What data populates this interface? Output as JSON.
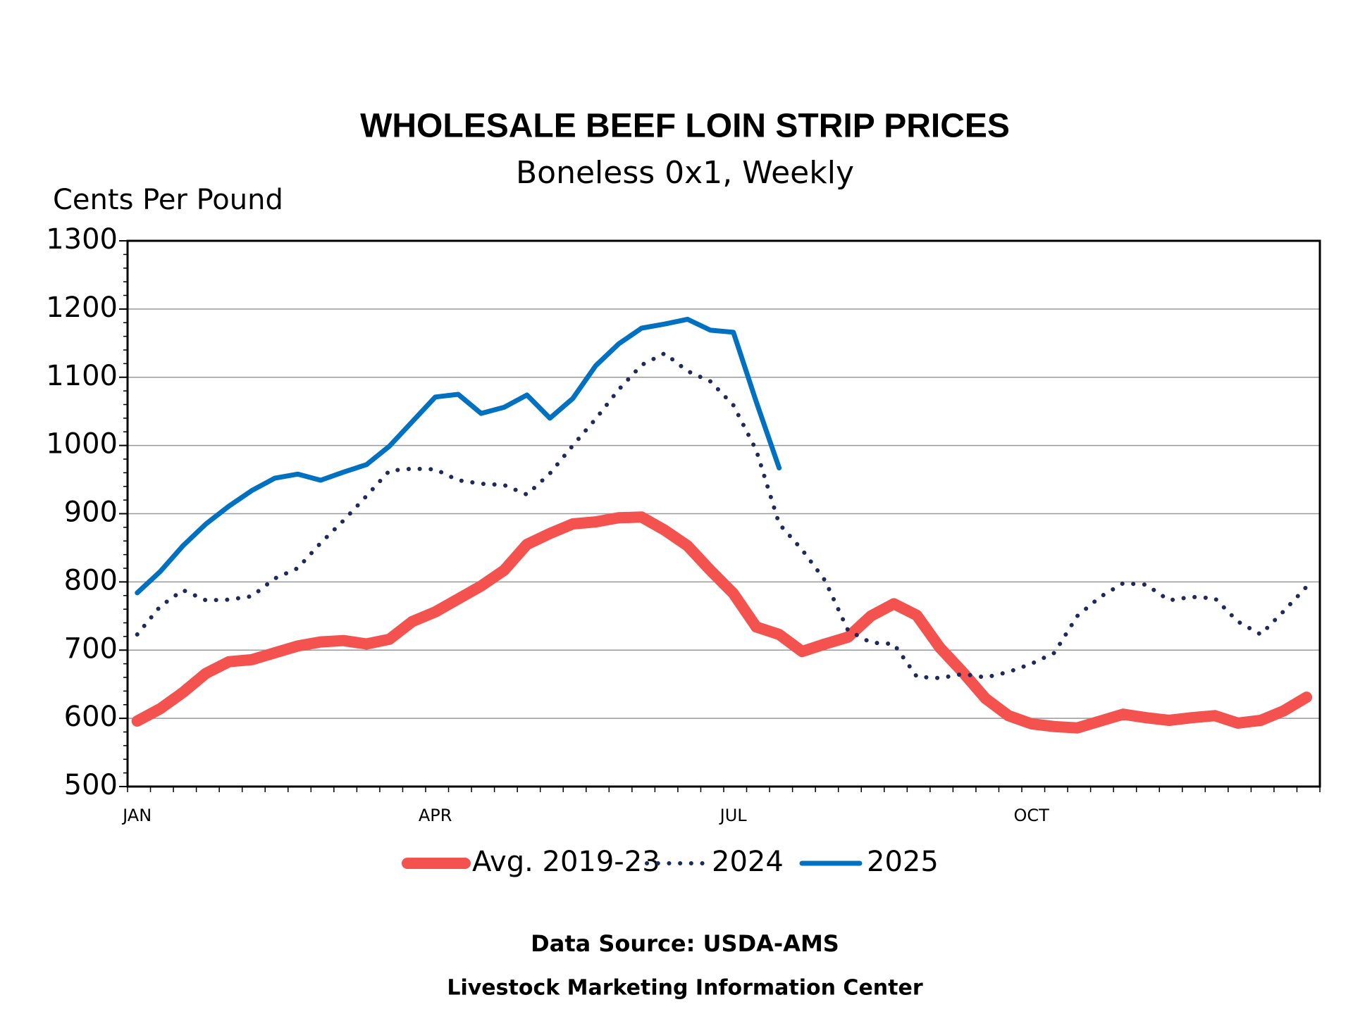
{
  "chart_data": {
    "type": "line",
    "title": "WHOLESALE BEEF LOIN STRIP PRICES",
    "subtitle": "Boneless 0x1, Weekly",
    "y_label": "Cents Per Pound",
    "source": "Data Source:  USDA-AMS",
    "credit": "Livestock Marketing Information Center",
    "categories": [
      "JAN",
      null,
      null,
      null,
      null,
      null,
      null,
      null,
      null,
      null,
      null,
      null,
      null,
      "APR",
      null,
      null,
      null,
      null,
      null,
      null,
      null,
      null,
      null,
      null,
      null,
      null,
      "JUL",
      null,
      null,
      null,
      null,
      null,
      null,
      null,
      null,
      null,
      null,
      null,
      null,
      "OCT",
      null,
      null,
      null,
      null,
      null,
      null,
      null,
      null,
      null,
      null,
      null,
      null
    ],
    "ylim": [
      500,
      1300
    ],
    "yticks": [
      500,
      600,
      700,
      800,
      900,
      1000,
      1100,
      1200,
      1300
    ],
    "grid": true,
    "legend": "bottom",
    "series": [
      {
        "name": "Avg. 2019-23",
        "color": "#F4524F",
        "style": "solid",
        "width": 16,
        "values": [
          596,
          614,
          638,
          666,
          683,
          686,
          696,
          706,
          712,
          714,
          709,
          716,
          742,
          756,
          775,
          794,
          817,
          855,
          871,
          885,
          888,
          894,
          895,
          876,
          853,
          817,
          783,
          734,
          723,
          698,
          709,
          719,
          750,
          768,
          751,
          704,
          668,
          629,
          604,
          592,
          588,
          586,
          596,
          606,
          601,
          597,
          601,
          604,
          593,
          597,
          611,
          631
        ]
      },
      {
        "name": "2024",
        "color": "#1F2A5C",
        "style": "dotted",
        "width": 6,
        "values": [
          723,
          764,
          788,
          773,
          774,
          779,
          805,
          820,
          857,
          890,
          926,
          963,
          966,
          965,
          949,
          944,
          942,
          928,
          959,
          1000,
          1039,
          1082,
          1118,
          1135,
          1109,
          1094,
          1059,
          993,
          885,
          847,
          802,
          729,
          711,
          709,
          661,
          659,
          665,
          660,
          668,
          680,
          696,
          750,
          778,
          798,
          796,
          773,
          778,
          776,
          742,
          723,
          757,
          793
        ]
      },
      {
        "name": "2025",
        "color": "#0070C0",
        "style": "solid",
        "width": 7,
        "values": [
          784,
          815,
          853,
          885,
          911,
          934,
          952,
          958,
          949,
          961,
          972,
          999,
          1035,
          1071,
          1075,
          1047,
          1056,
          1074,
          1040,
          1069,
          1117,
          1149,
          1172,
          1178,
          1185,
          1169,
          1166,
          1064,
          967,
          null,
          null,
          null,
          null,
          null,
          null,
          null,
          null,
          null,
          null,
          null,
          null,
          null,
          null,
          null,
          null,
          null,
          null,
          null,
          null,
          null,
          null,
          null
        ]
      }
    ]
  }
}
